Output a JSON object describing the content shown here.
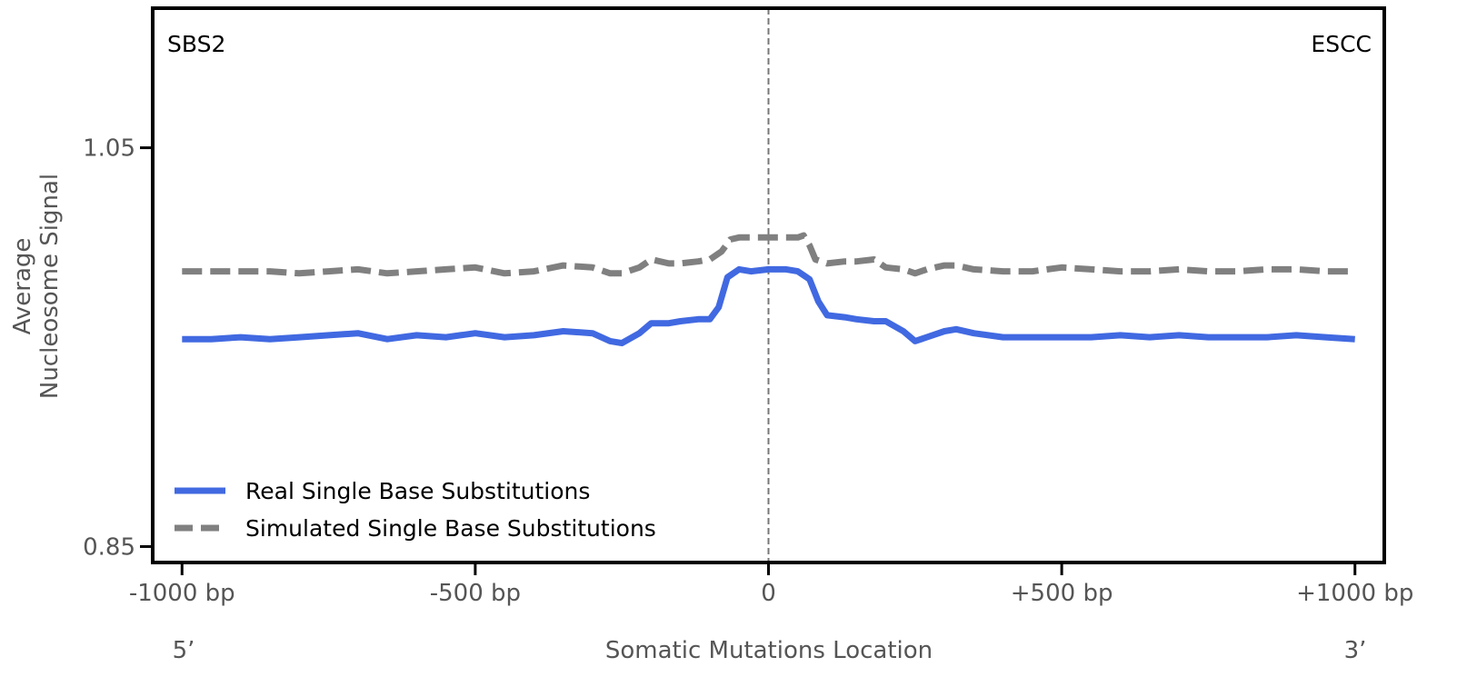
{
  "chart_data": {
    "type": "line",
    "xlabel": "Somatic Mutations Location",
    "ylabel_lines": [
      "Average",
      "Nucleosome Signal"
    ],
    "xlim": [
      -1050,
      1050
    ],
    "ylim": [
      0.842,
      1.12
    ],
    "xticks": [
      {
        "value": -1000,
        "label": "-1000 bp"
      },
      {
        "value": -500,
        "label": "-500 bp"
      },
      {
        "value": 0,
        "label": "0"
      },
      {
        "value": 500,
        "label": "+500 bp"
      },
      {
        "value": 1000,
        "label": "+1000 bp"
      }
    ],
    "yticks": [
      {
        "value": 1.05,
        "label": "1.05"
      },
      {
        "value": 0.85,
        "label": "0.85"
      }
    ],
    "end_labels": {
      "left": "5’",
      "right": "3’"
    },
    "corner_labels": {
      "left": "SBS2",
      "right": "ESCC"
    },
    "vertical_reference_x": 0,
    "legend_position": "lower-left",
    "series": [
      {
        "name": "Real Single Base Substitutions",
        "color": "#4169E1",
        "style": "solid",
        "x": [
          -1000,
          -950,
          -900,
          -850,
          -800,
          -750,
          -700,
          -650,
          -600,
          -550,
          -500,
          -450,
          -400,
          -350,
          -300,
          -270,
          -250,
          -220,
          -200,
          -170,
          -150,
          -120,
          -100,
          -85,
          -70,
          -50,
          -30,
          0,
          30,
          50,
          70,
          85,
          100,
          130,
          150,
          180,
          200,
          230,
          250,
          270,
          300,
          320,
          350,
          400,
          450,
          500,
          550,
          600,
          650,
          700,
          750,
          800,
          850,
          900,
          950,
          1000
        ],
        "y": [
          0.954,
          0.954,
          0.955,
          0.954,
          0.955,
          0.956,
          0.957,
          0.954,
          0.956,
          0.955,
          0.957,
          0.955,
          0.956,
          0.958,
          0.957,
          0.953,
          0.952,
          0.957,
          0.962,
          0.962,
          0.963,
          0.964,
          0.964,
          0.97,
          0.985,
          0.989,
          0.988,
          0.989,
          0.989,
          0.988,
          0.984,
          0.973,
          0.966,
          0.965,
          0.964,
          0.963,
          0.963,
          0.958,
          0.953,
          0.955,
          0.958,
          0.959,
          0.957,
          0.955,
          0.955,
          0.955,
          0.955,
          0.956,
          0.955,
          0.956,
          0.955,
          0.955,
          0.955,
          0.956,
          0.955,
          0.954
        ]
      },
      {
        "name": "Simulated Single Base Substitutions",
        "color": "#808080",
        "style": "dashed",
        "x": [
          -1000,
          -950,
          -900,
          -850,
          -800,
          -750,
          -700,
          -650,
          -600,
          -550,
          -500,
          -450,
          -400,
          -350,
          -300,
          -270,
          -250,
          -220,
          -200,
          -170,
          -150,
          -120,
          -100,
          -80,
          -65,
          -50,
          0,
          50,
          60,
          70,
          80,
          100,
          130,
          150,
          180,
          200,
          230,
          250,
          270,
          300,
          320,
          350,
          400,
          450,
          500,
          550,
          600,
          650,
          700,
          750,
          800,
          850,
          900,
          950,
          1000
        ],
        "y": [
          0.988,
          0.988,
          0.988,
          0.988,
          0.987,
          0.988,
          0.989,
          0.987,
          0.988,
          0.989,
          0.99,
          0.987,
          0.988,
          0.991,
          0.99,
          0.987,
          0.987,
          0.99,
          0.994,
          0.992,
          0.992,
          0.993,
          0.994,
          0.998,
          1.004,
          1.005,
          1.005,
          1.005,
          1.006,
          1.001,
          0.994,
          0.992,
          0.993,
          0.993,
          0.994,
          0.99,
          0.989,
          0.987,
          0.989,
          0.991,
          0.991,
          0.989,
          0.988,
          0.988,
          0.99,
          0.989,
          0.988,
          0.988,
          0.989,
          0.988,
          0.988,
          0.989,
          0.989,
          0.988,
          0.988
        ]
      }
    ]
  }
}
